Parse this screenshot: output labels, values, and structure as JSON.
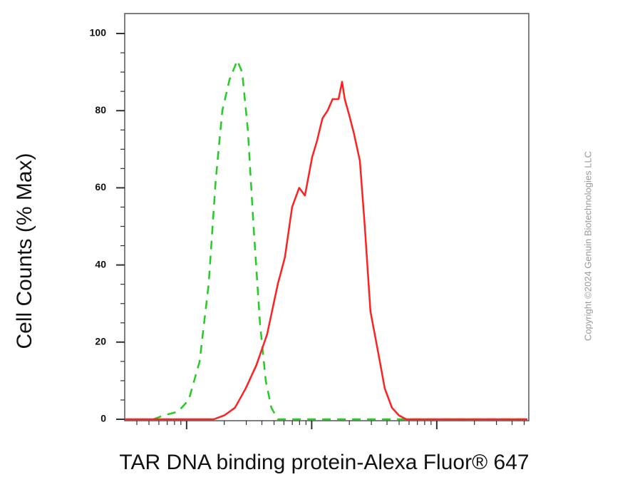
{
  "chart_data": {
    "type": "line",
    "x_label": "TAR DNA binding protein-Alexa Fluor® 647",
    "y_label": "Cell Counts (% Max)",
    "annotation": "Copyright ©2024 Genuin Biotechnologies LLC",
    "xlog": true,
    "xlim": [
      3.2,
      5300
    ],
    "xticks": [
      10,
      100,
      1000
    ],
    "ylim": [
      0,
      100
    ],
    "yticks": [
      0,
      20,
      40,
      60,
      80,
      100
    ],
    "series": [
      {
        "color": "#22cc22",
        "dash": true,
        "x": [
          5.4,
          6.58,
          8.55,
          10.4,
          12.7,
          15.0,
          17.1,
          19.3,
          22.0,
          25.4,
          27.8,
          30.9,
          34.3,
          38.6,
          42.9,
          47.6,
          53.6,
          5300
        ],
        "values": [
          0,
          1,
          2,
          5,
          15,
          35,
          62,
          80,
          88,
          93,
          90,
          75,
          50,
          25,
          10,
          3,
          0,
          0
        ]
      },
      {
        "color": "#ff2020",
        "dash": false,
        "x": [
          3.2,
          16.5,
          20.0,
          24.4,
          29.7,
          36.1,
          44.0,
          53.6,
          61.1,
          69.7,
          79.4,
          88.3,
          101,
          110,
          122,
          134,
          147,
          164,
          175,
          184,
          199,
          218,
          243,
          266,
          295,
          337,
          384,
          438,
          499,
          569,
          5300
        ],
        "values": [
          0,
          0,
          1,
          3,
          8,
          14,
          22,
          35,
          42,
          55,
          60,
          58,
          68,
          72,
          78,
          80,
          83,
          83,
          87.5,
          83,
          79,
          74,
          67,
          50,
          28,
          18,
          8,
          3,
          1,
          0,
          0
        ]
      }
    ]
  }
}
